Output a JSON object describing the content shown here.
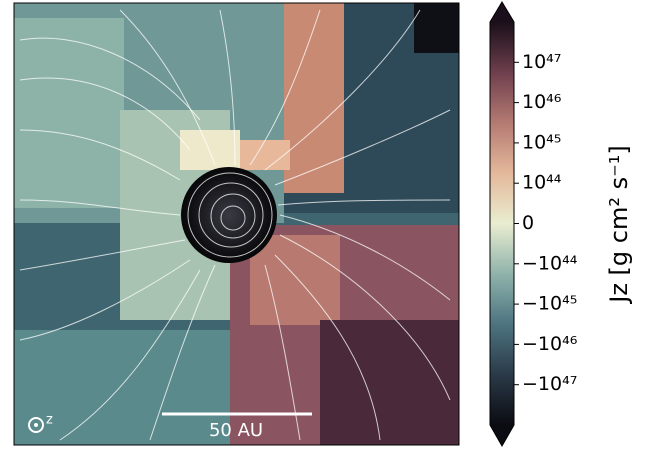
{
  "chart_data": {
    "type": "image",
    "colorbar": {
      "label": "Jz [g cm² s⁻¹]",
      "scale": "symlog",
      "linthresh": 1e+44,
      "ylim": [
        -1e+48,
        1e+48
      ],
      "yticks": [
        {
          "value": 1e+47,
          "label": "10⁴⁷"
        },
        {
          "value": 1e+46,
          "label": "10⁴⁶"
        },
        {
          "value": 1e+45,
          "label": "10⁴⁵"
        },
        {
          "value": 1e+44,
          "label": "10⁴⁴"
        },
        0,
        {
          "value": -1e+44,
          "label": "−10⁴⁴"
        },
        {
          "value": -1e+45,
          "label": "−10⁴⁵"
        },
        {
          "value": -1e+46,
          "label": "−10⁴⁶"
        },
        {
          "value": -1e+47,
          "label": "−10⁴⁷"
        }
      ],
      "colormap": [
        "#0b0b12",
        "#2a3a48",
        "#4d7480",
        "#8fb3ab",
        "#e9edd0",
        "#e4b89a",
        "#b47a72",
        "#6e3f4d",
        "#1a0f1a"
      ]
    },
    "scale_bar": "50 AU",
    "axis_symbol": "z"
  }
}
